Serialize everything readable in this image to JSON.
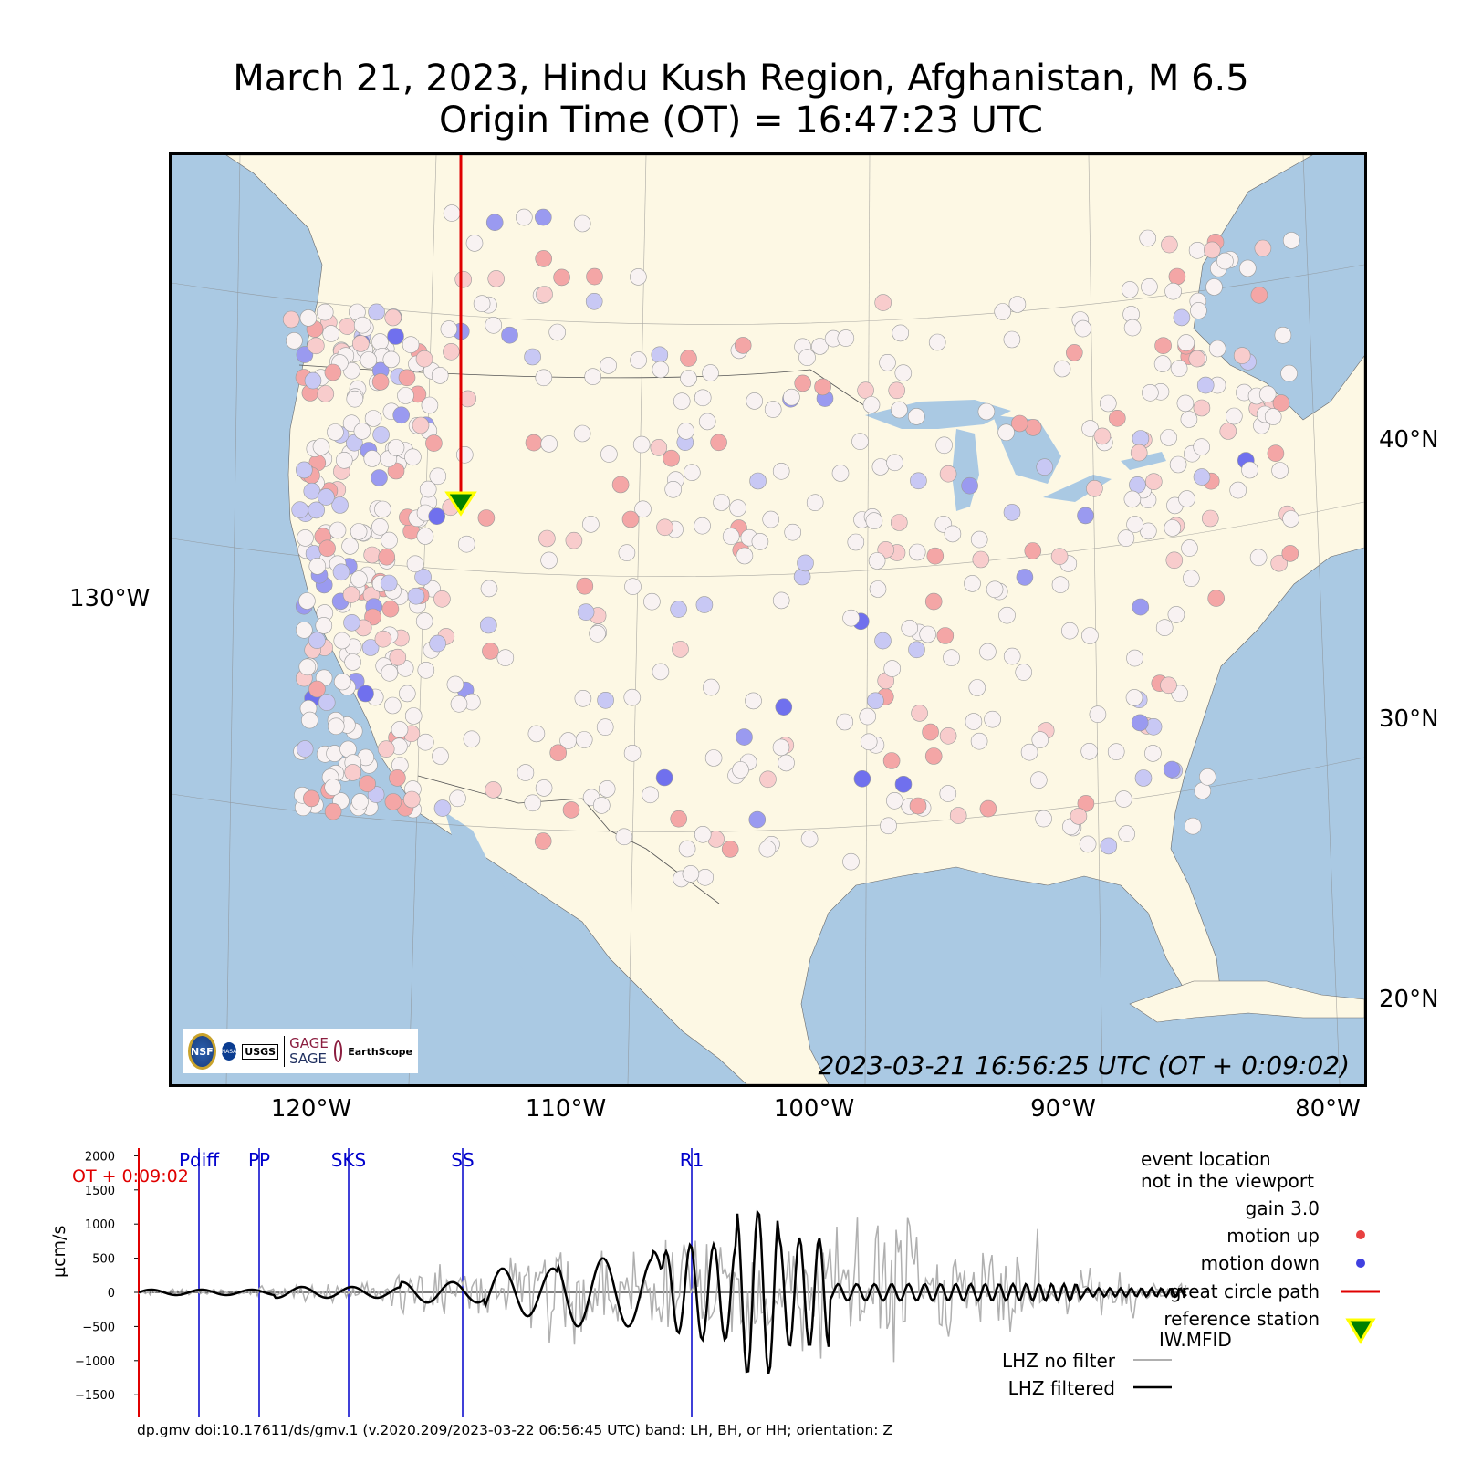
{
  "title": {
    "line1": "March 21, 2023, Hindu Kush Region, Afghanistan, M 6.5",
    "line2": "Origin Time (OT) = 16:47:23 UTC"
  },
  "map": {
    "timestamp": "2023-03-21 16:56:25 UTC (OT + 0:09:02)",
    "lat_labels": [
      "40°N",
      "30°N",
      "20°N"
    ],
    "lon_labels": [
      "120°W",
      "110°W",
      "100°W",
      "90°W",
      "80°W"
    ],
    "left_label": "130°W",
    "logos": {
      "nsf": "NSF",
      "nasa": "NASA",
      "usgs": "USGS",
      "gage": "GAGE",
      "sage": "SAGE",
      "earthscope": "EarthScope",
      "operated": "Operated by",
      "consortium": "Consortium"
    },
    "colors": {
      "ocean": "#aac9e3",
      "land": "#fdf8e4",
      "up": "#f08080",
      "down": "#8888f0",
      "path": "#e00000"
    }
  },
  "seismogram": {
    "ylabel": "µcm/s",
    "yticks": [
      "2000",
      "1500",
      "1000",
      "500",
      "0",
      "−500",
      "−1000",
      "−1500"
    ],
    "phases": [
      "Pdiff",
      "PP",
      "SKS",
      "SS",
      "R1"
    ],
    "ot_label": "OT + 0:09:02",
    "legend": {
      "event_loc1": "event location",
      "event_loc2": "not in the viewport",
      "gain": "gain  3.0",
      "motion_up": "motion up",
      "motion_down": "motion down",
      "great_circle": "great circle path",
      "ref_station1": "reference station",
      "ref_station2": "IW.MFID",
      "no_filter": "LHZ no filter",
      "filtered": "LHZ filtered"
    },
    "footer": "dp.gmv doi:10.17611/ds/gmv.1 (v.2020.209/2023-03-22 06:56:45 UTC) band: LH, BH, or HH; orientation: Z"
  }
}
